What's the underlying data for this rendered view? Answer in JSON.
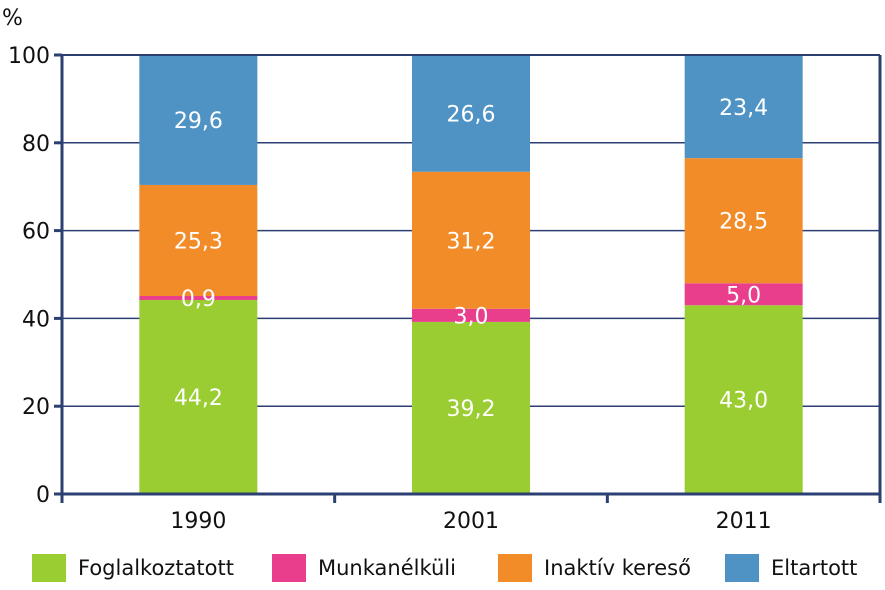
{
  "chart_data": {
    "type": "bar",
    "stacked": true,
    "unit_label": "%",
    "categories": [
      "1990",
      "2001",
      "2011"
    ],
    "ylim": [
      0,
      100
    ],
    "yticks": [
      "0",
      "20",
      "40",
      "60",
      "80",
      "100"
    ],
    "grid": true,
    "legend_position": "bottom",
    "series": [
      {
        "name": "Foglalkoztatott",
        "color": "#9ACD32",
        "values": [
          44.2,
          39.2,
          43.0
        ],
        "labels": [
          "44,2",
          "39,2",
          "43,0"
        ]
      },
      {
        "name": "Munkanélküli",
        "color": "#E83E8C",
        "values": [
          0.9,
          3.0,
          5.0
        ],
        "labels": [
          "0,9",
          "3,0",
          "5,0"
        ]
      },
      {
        "name": "Inaktív kereső",
        "color": "#F28C28",
        "values": [
          25.3,
          31.2,
          28.5
        ],
        "labels": [
          "25,3",
          "31,2",
          "28,5"
        ]
      },
      {
        "name": "Eltartott",
        "color": "#4F93C5",
        "values": [
          29.6,
          26.6,
          23.4
        ],
        "labels": [
          "29,6",
          "26,6",
          "23,4"
        ]
      }
    ]
  }
}
